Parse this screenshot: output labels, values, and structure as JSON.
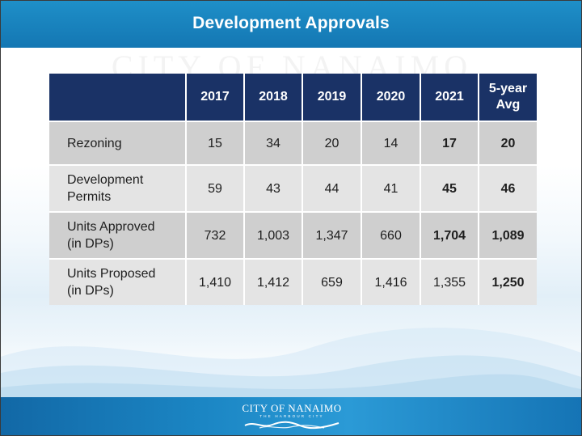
{
  "slide": {
    "title": "Development Approvals",
    "watermark": "CITY OF NANAIMO"
  },
  "table": {
    "headers": [
      "",
      "2017",
      "2018",
      "2019",
      "2020",
      "2021",
      "5-year Avg"
    ],
    "header_avg_line1": "5-year",
    "header_avg_line2": "Avg",
    "rows": [
      {
        "label_line1": "Rezoning",
        "label_line2": "",
        "values": [
          "15",
          "34",
          "20",
          "14",
          "17",
          "20"
        ]
      },
      {
        "label_line1": "Development",
        "label_line2": "Permits",
        "values": [
          "59",
          "43",
          "44",
          "41",
          "45",
          "46"
        ]
      },
      {
        "label_line1": "Units Approved",
        "label_line2": "(in DPs)",
        "values": [
          "732",
          "1,003",
          "1,347",
          "660",
          "1,704",
          "1,089"
        ]
      },
      {
        "label_line1": "Units Proposed",
        "label_line2": "(in DPs)",
        "values": [
          "1,410",
          "1,412",
          "659",
          "1,416",
          "1,355",
          "1,250"
        ]
      }
    ]
  },
  "footer": {
    "logo_name": "CITY OF NANAIMO",
    "logo_tagline": "THE HARBOUR CITY"
  },
  "colors": {
    "title_bar": "#1a84c0",
    "header_fill": "#1a3266",
    "row_dark": "#cfcfcf",
    "row_light": "#e4e4e4",
    "footer_bar": "#1b86c4"
  }
}
